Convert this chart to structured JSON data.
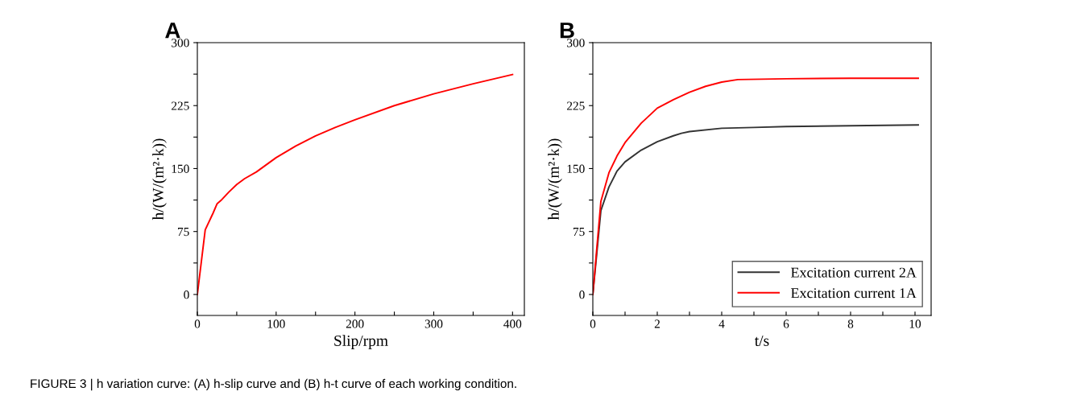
{
  "chart_data": [
    {
      "type": "line",
      "title": "A",
      "xlabel": "Slip/rpm",
      "ylabel": "h/(W/(m²·k))",
      "xlim": [
        0,
        415
      ],
      "ylim": [
        -25,
        300
      ],
      "xticks": [
        0,
        {
          "value": 50,
          "label": null
        },
        100,
        {
          "value": 150,
          "label": null
        },
        200,
        {
          "value": 250,
          "label": null
        },
        300,
        {
          "value": 350,
          "label": null
        },
        400
      ],
      "yticks": [
        0,
        {
          "value": 37.5,
          "label": null
        },
        75,
        {
          "value": 112.5,
          "label": null
        },
        150,
        {
          "value": 187.5,
          "label": null
        },
        225,
        {
          "value": 262.5,
          "label": null
        },
        300
      ],
      "grid": false,
      "legend": false,
      "annotations": [
        "FIGURE 3 | h variation curve: (A) h-slip curve and (B) h-t curve of each working condition."
      ],
      "series": [
        {
          "color": "#ff0000",
          "x": [
            0,
            10,
            20,
            25,
            30,
            40,
            50,
            60,
            75,
            100,
            125,
            150,
            175,
            200,
            250,
            300,
            350,
            400
          ],
          "values": [
            0,
            77,
            97,
            108,
            112,
            122,
            131,
            138,
            146,
            163,
            177,
            189,
            199,
            208,
            225,
            239,
            251,
            262
          ]
        }
      ]
    },
    {
      "type": "line",
      "title": "B",
      "xlabel": "t/s",
      "ylabel": "h/(W/(m²·k))",
      "xlim": [
        0,
        10.5
      ],
      "ylim": [
        -25,
        300
      ],
      "xticks": [
        0,
        {
          "value": 1,
          "label": null
        },
        2,
        {
          "value": 3,
          "label": null
        },
        4,
        {
          "value": 5,
          "label": null
        },
        6,
        {
          "value": 7,
          "label": null
        },
        8,
        {
          "value": 9,
          "label": null
        },
        10
      ],
      "yticks": [
        0,
        {
          "value": 37.5,
          "label": null
        },
        75,
        {
          "value": 112.5,
          "label": null
        },
        150,
        {
          "value": 187.5,
          "label": null
        },
        225,
        {
          "value": 262.5,
          "label": null
        },
        300
      ],
      "grid": false,
      "legend": "bottom right",
      "series": [
        {
          "name": "Excitation current 2A",
          "color": "#333333",
          "x": [
            0,
            0.25,
            0.5,
            0.75,
            1,
            1.5,
            2,
            2.5,
            2.75,
            3,
            4,
            5,
            6,
            8,
            10.1
          ],
          "values": [
            0,
            100,
            128,
            147,
            158,
            172,
            182,
            189,
            192,
            194,
            198,
            199,
            200,
            201,
            202
          ]
        },
        {
          "name": "Excitation current 1A",
          "color": "#ff0000",
          "x": [
            0,
            0.25,
            0.5,
            0.75,
            1,
            1.5,
            2,
            2.5,
            3,
            3.5,
            4,
            4.5,
            6,
            8,
            10.1
          ],
          "values": [
            0,
            111,
            145,
            165,
            181,
            204,
            222,
            232,
            241,
            248,
            253,
            256,
            257,
            257.5,
            257.5
          ]
        }
      ]
    }
  ]
}
